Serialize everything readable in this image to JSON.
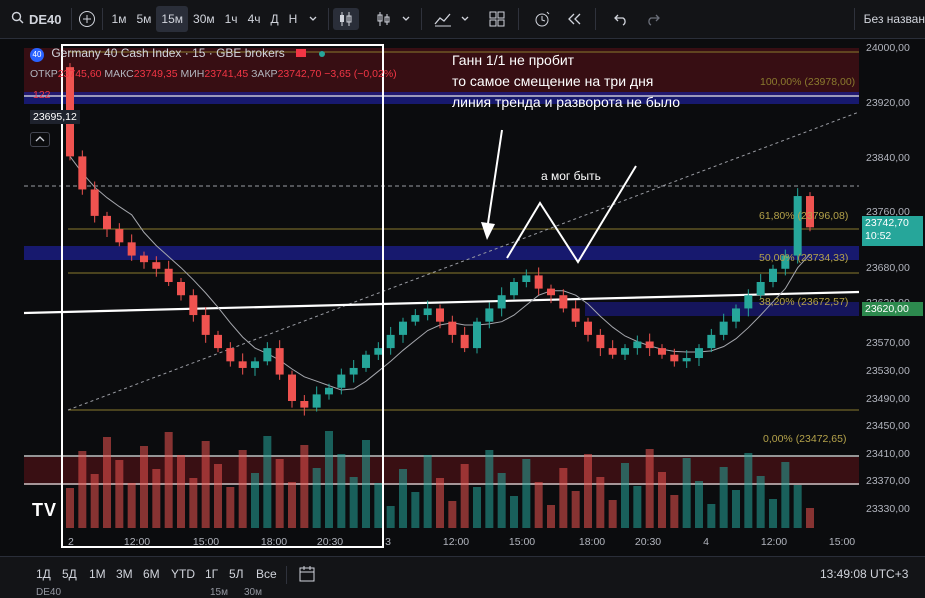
{
  "toolbar": {
    "symbol": "DE40",
    "intervals": [
      "1м",
      "5м",
      "15м",
      "30м",
      "1ч",
      "4ч",
      "Д",
      "Н"
    ],
    "active_interval": "15м",
    "layout_name": "Без назван"
  },
  "legend": {
    "badge": "40",
    "title": "Germany 40 Cash Index · 15 · GBE brokers",
    "open_label": "ОТКР",
    "open": "23745,60",
    "high_label": "МАКС",
    "high": "23749,35",
    "low_label": "МИН",
    "low": "23741,45",
    "close_label": "ЗАКР",
    "close": "23742,70",
    "change": "−3,65 (−0,02%)",
    "volume": "122",
    "crosshair_price": "23695,12"
  },
  "annotations": {
    "main": [
      "Ганн 1/1 не пробит",
      "то самое смещение на три дня",
      "линия тренда и разворота не было"
    ],
    "could_be": "а мог быть"
  },
  "fib_labels": {
    "top": "100,00% (23978,00)",
    "f618": "61,80% (23796,08)",
    "f50": "50,00% (23734,33)",
    "f382": "38,20% (23672,57)",
    "f0": "0,00% (23472,65)"
  },
  "price_axis": [
    "24000,00",
    "23920,00",
    "23840,00",
    "23760,00",
    "23680,00",
    "23620,00",
    "23570,00",
    "23530,00",
    "23490,00",
    "23450,00",
    "23410,00",
    "23370,00",
    "23330,00"
  ],
  "current_price": "23742,70",
  "countdown": "10:52",
  "level_price": "23620,00",
  "time_axis": [
    "2",
    "12:00",
    "15:00",
    "18:00",
    "20:30",
    "3",
    "12:00",
    "15:00",
    "18:00",
    "20:30",
    "4",
    "12:00",
    "15:00"
  ],
  "bottom": {
    "ranges": [
      "1Д",
      "5Д",
      "1М",
      "3М",
      "6М",
      "YTD",
      "1Г",
      "5Л",
      "Все"
    ],
    "clock": "13:49:08 UTC+3",
    "footer_tabs": [
      "DE40",
      "15м",
      "30м"
    ]
  },
  "chart_data": {
    "type": "candlestick",
    "symbol": "DE40",
    "interval": "15м",
    "ylim": [
      23300,
      24020
    ],
    "closes": [
      23850,
      23800,
      23760,
      23740,
      23720,
      23700,
      23690,
      23680,
      23660,
      23640,
      23610,
      23580,
      23560,
      23540,
      23530,
      23540,
      23560,
      23520,
      23480,
      23470,
      23490,
      23500,
      23520,
      23530,
      23550,
      23560,
      23580,
      23600,
      23610,
      23620,
      23600,
      23580,
      23560,
      23600,
      23620,
      23640,
      23660,
      23670,
      23650,
      23640,
      23620,
      23600,
      23580,
      23560,
      23550,
      23560,
      23570,
      23560,
      23550,
      23540,
      23545,
      23560,
      23580,
      23600,
      23620,
      23640,
      23660,
      23680,
      23700,
      23790,
      23742.7
    ],
    "gann_fib": [
      "100,00% (23978,00)",
      "61,80% (23796,08)",
      "50,00% (23734,33)",
      "38,20% (23672,57)",
      "0,00% (23472,65)"
    ],
    "colors": {
      "up": "#26a69a",
      "down": "#ef5350",
      "fib": "#8a7a2e",
      "blue_zone": "#2727a8",
      "red_zone": "#5a1218"
    }
  }
}
